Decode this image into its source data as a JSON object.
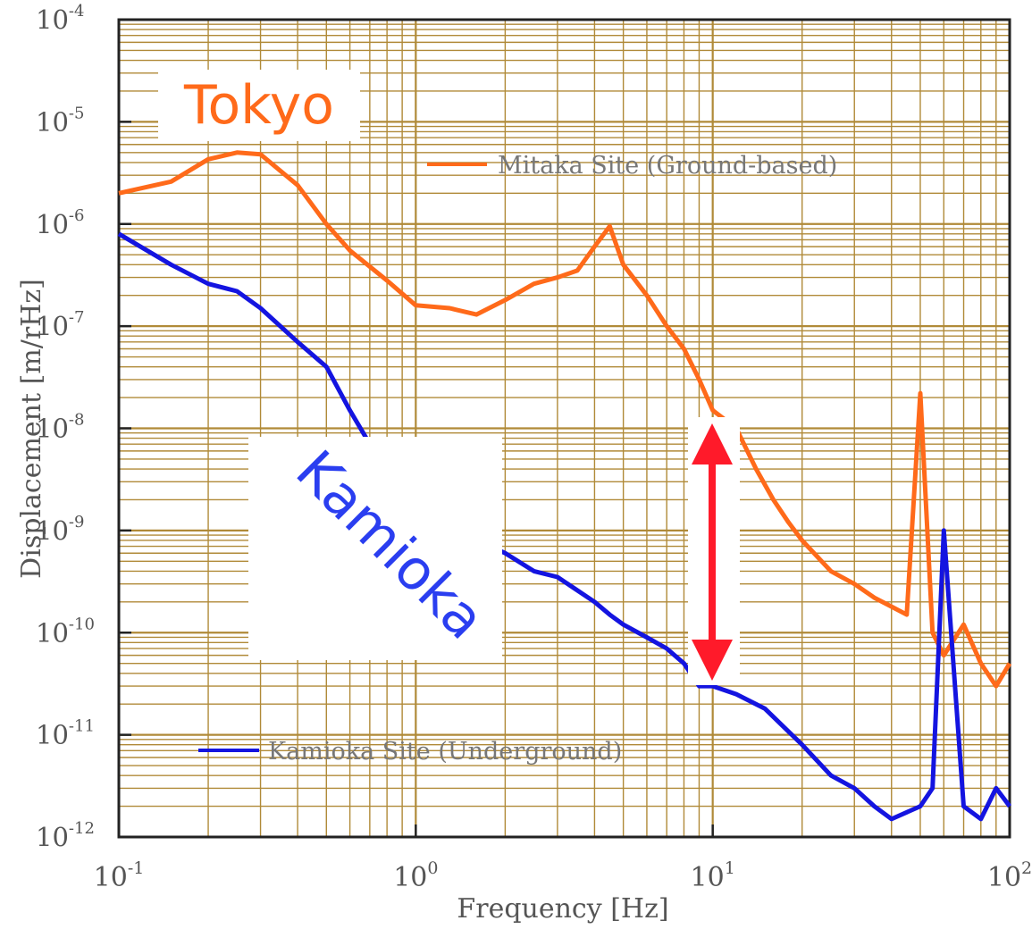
{
  "chart_data": {
    "type": "line",
    "xlabel": "Frequency [Hz]",
    "ylabel": "Displacement [m/rHz]",
    "x_scale": "log",
    "y_scale": "log",
    "xlim": [
      0.1,
      100
    ],
    "ylim": [
      1e-12,
      0.0001
    ],
    "grid": true,
    "x_ticks": [
      {
        "base": "10",
        "exp": "-1"
      },
      {
        "base": "10",
        "exp": "0"
      },
      {
        "base": "10",
        "exp": "1"
      },
      {
        "base": "10",
        "exp": "2"
      }
    ],
    "y_ticks": [
      {
        "base": "10",
        "exp": "-4"
      },
      {
        "base": "10",
        "exp": "-5"
      },
      {
        "base": "10",
        "exp": "-6"
      },
      {
        "base": "10",
        "exp": "-7"
      },
      {
        "base": "10",
        "exp": "-8"
      },
      {
        "base": "10",
        "exp": "-9"
      },
      {
        "base": "10",
        "exp": "-10"
      },
      {
        "base": "10",
        "exp": "-11"
      },
      {
        "base": "10",
        "exp": "-12"
      }
    ],
    "series": [
      {
        "name": "Mitaka Site (Ground-based)",
        "color": "#ff6a1a",
        "x": [
          0.1,
          0.15,
          0.2,
          0.25,
          0.3,
          0.4,
          0.5,
          0.6,
          0.8,
          1.0,
          1.3,
          1.6,
          2.0,
          2.5,
          3.0,
          3.5,
          4.0,
          4.5,
          5.0,
          6.0,
          7.0,
          8.0,
          9.0,
          10,
          12,
          14,
          16,
          18,
          20,
          25,
          30,
          35,
          40,
          45,
          50,
          55,
          60,
          70,
          80,
          90,
          100
        ],
        "y": [
          2e-06,
          2.6e-06,
          4.3e-06,
          5e-06,
          4.8e-06,
          2.4e-06,
          1e-06,
          5.5e-07,
          2.8e-07,
          1.6e-07,
          1.5e-07,
          1.3e-07,
          1.8e-07,
          2.6e-07,
          3e-07,
          3.5e-07,
          6e-07,
          9.5e-07,
          4e-07,
          2e-07,
          1e-07,
          6e-08,
          3e-08,
          1.5e-08,
          1e-08,
          4e-09,
          2e-09,
          1.2e-09,
          8e-10,
          4e-10,
          3e-10,
          2.2e-10,
          1.8e-10,
          1.5e-10,
          2.2e-08,
          1e-10,
          6e-11,
          1.2e-10,
          5e-11,
          3e-11,
          5e-11
        ]
      },
      {
        "name": "Kamioka Site (Underground)",
        "color": "#1414e0",
        "x": [
          0.1,
          0.15,
          0.2,
          0.25,
          0.3,
          0.4,
          0.5,
          0.6,
          0.7,
          0.8,
          1.0,
          1.3,
          1.6,
          2.0,
          2.5,
          3.0,
          4.0,
          4.5,
          5.0,
          6.0,
          7.0,
          8.0,
          9.0,
          10,
          12,
          15,
          20,
          25,
          30,
          35,
          40,
          50,
          55,
          60,
          70,
          80,
          90,
          100
        ],
        "y": [
          8e-07,
          4e-07,
          2.6e-07,
          2.2e-07,
          1.5e-07,
          7e-08,
          4e-08,
          1.5e-08,
          7e-09,
          4e-09,
          2e-09,
          1.2e-09,
          8e-10,
          6e-10,
          4e-10,
          3.5e-10,
          2e-10,
          1.5e-10,
          1.2e-10,
          9e-11,
          7e-11,
          5e-11,
          3e-11,
          3e-11,
          2.5e-11,
          1.8e-11,
          8e-12,
          4e-12,
          3e-12,
          2e-12,
          1.5e-12,
          2e-12,
          3e-12,
          1e-09,
          2e-12,
          1.5e-12,
          3e-12,
          2e-12
        ]
      }
    ]
  },
  "annotations": {
    "tokyo": "Tokyo",
    "kamioka": "Kamioka"
  }
}
